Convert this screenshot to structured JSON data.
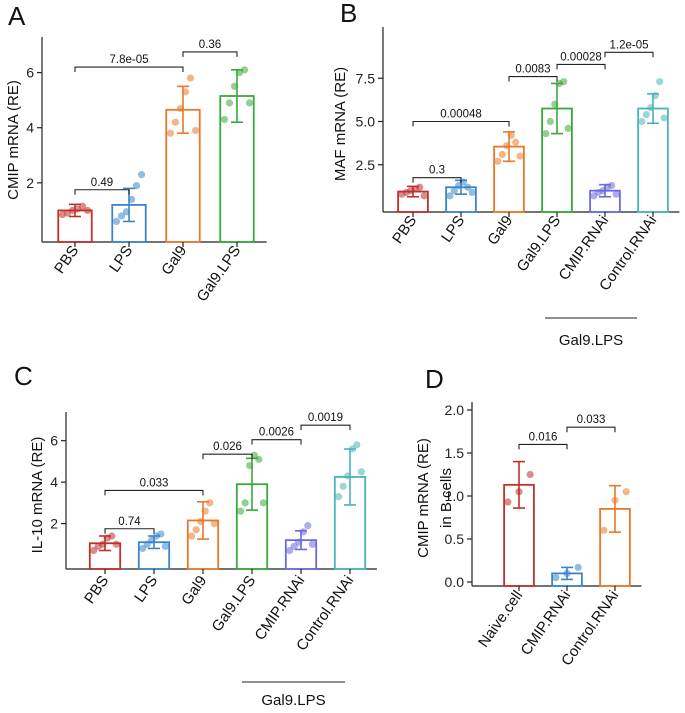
{
  "chart_data": [
    {
      "panel": "A",
      "type": "bar",
      "ylabel": "CMIP mRNA (RE)",
      "ylim": [
        0,
        7
      ],
      "yticks": [
        2,
        4,
        6
      ],
      "categories": [
        "PBS",
        "LPS",
        "Gal9",
        "Gal9.LPS"
      ],
      "colors": [
        "#c0302c",
        "#3a85c8",
        "#e9782b",
        "#3aa83a"
      ],
      "values": [
        1.0,
        1.2,
        4.65,
        5.15
      ],
      "errors": [
        0.22,
        0.6,
        0.85,
        0.95
      ],
      "points": [
        [
          0.85,
          0.9,
          1.0,
          1.05,
          1.15,
          1.0
        ],
        [
          0.6,
          0.8,
          0.95,
          1.4,
          1.9,
          2.3
        ],
        [
          3.8,
          4.2,
          4.7,
          5.3,
          5.8,
          3.9
        ],
        [
          4.3,
          4.9,
          5.5,
          6.0,
          6.1,
          4.9
        ]
      ],
      "comparisons": [
        {
          "a": 0,
          "b": 1,
          "label": "0.49",
          "y": 1.75
        },
        {
          "a": 0,
          "b": 2,
          "label": "7.8e-05",
          "y": 6.2
        },
        {
          "a": 2,
          "b": 3,
          "label": "0.36",
          "y": 6.75
        }
      ],
      "group_label": ""
    },
    {
      "panel": "B",
      "type": "bar",
      "ylabel": "MAF mRNA (RE)",
      "ylim": [
        0,
        10
      ],
      "yticks": [
        2.5,
        5.0,
        7.5
      ],
      "ytick_labels": [
        "2.5",
        "5.0",
        "7.5"
      ],
      "categories": [
        "PBS",
        "LPS",
        "Gal9",
        "Gal9.LPS",
        "CMIP.RNAi",
        "Control.RNAi"
      ],
      "colors": [
        "#c0302c",
        "#3a85c8",
        "#e9782b",
        "#3aa83a",
        "#6a6ae0",
        "#4bb3bb"
      ],
      "values": [
        0.95,
        1.2,
        3.55,
        5.75,
        1.0,
        5.75
      ],
      "errors": [
        0.3,
        0.4,
        0.85,
        1.45,
        0.35,
        0.85
      ],
      "points": [
        [
          0.8,
          0.9,
          1.0,
          1.1,
          1.2,
          0.7
        ],
        [
          0.7,
          1.0,
          1.3,
          1.5,
          1.2,
          0.9
        ],
        [
          2.7,
          3.1,
          3.6,
          4.2,
          3.8,
          3.0
        ],
        [
          4.3,
          5.0,
          6.0,
          7.2,
          7.3,
          4.6
        ],
        [
          0.7,
          0.9,
          1.0,
          1.2,
          1.3,
          0.8
        ],
        [
          5.0,
          5.4,
          5.8,
          6.5,
          7.3,
          5.2
        ]
      ],
      "comparisons": [
        {
          "a": 0,
          "b": 1,
          "label": "0.3",
          "y": 1.75
        },
        {
          "a": 0,
          "b": 2,
          "label": "0.00048",
          "y": 5.0
        },
        {
          "a": 2,
          "b": 3,
          "label": "0.0083",
          "y": 7.6
        },
        {
          "a": 3,
          "b": 4,
          "label": "0.00028",
          "y": 8.3
        },
        {
          "a": 4,
          "b": 5,
          "label": "1.2e-05",
          "y": 9.0
        }
      ],
      "group_label": "Gal9.LPS"
    },
    {
      "panel": "C",
      "type": "bar",
      "ylabel": "IL-10 mRNA (RE)",
      "ylim": [
        0,
        7
      ],
      "yticks": [
        2,
        4,
        6
      ],
      "categories": [
        "PBS",
        "LPS",
        "Gal9",
        "Gal9.LPS",
        "CMIP.RNAi",
        "Control.RNAi"
      ],
      "colors": [
        "#c0302c",
        "#3a85c8",
        "#e9782b",
        "#3aa83a",
        "#6a6ae0",
        "#4bb3bb"
      ],
      "values": [
        1.05,
        1.1,
        2.15,
        3.9,
        1.2,
        4.25
      ],
      "errors": [
        0.35,
        0.3,
        0.9,
        1.25,
        0.45,
        1.35
      ],
      "points": [
        [
          0.7,
          0.9,
          1.0,
          1.3,
          1.4,
          1.0
        ],
        [
          0.8,
          1.0,
          1.2,
          1.4,
          1.5,
          0.9
        ],
        [
          1.4,
          1.7,
          2.1,
          2.6,
          3.0,
          2.0
        ],
        [
          2.6,
          3.0,
          4.8,
          5.3,
          5.1,
          3.0
        ],
        [
          0.7,
          0.9,
          1.1,
          1.6,
          1.9,
          1.0
        ],
        [
          3.3,
          3.8,
          4.3,
          5.6,
          5.8,
          4.5
        ]
      ],
      "comparisons": [
        {
          "a": 0,
          "b": 1,
          "label": "0.74",
          "y": 1.75
        },
        {
          "a": 0,
          "b": 2,
          "label": "0.033",
          "y": 3.6
        },
        {
          "a": 2,
          "b": 3,
          "label": "0.026",
          "y": 5.35
        },
        {
          "a": 3,
          "b": 4,
          "label": "0.0026",
          "y": 6.05
        },
        {
          "a": 4,
          "b": 5,
          "label": "0.0019",
          "y": 6.75
        }
      ],
      "group_label": "Gal9.LPS"
    },
    {
      "panel": "D",
      "type": "bar",
      "ylabel": "CMIP mRNA (RE)",
      "ylabel2": "in B cells",
      "ylim": [
        0,
        2.0
      ],
      "yticks": [
        0.0,
        0.5,
        1.0,
        1.5,
        2.0
      ],
      "ytick_labels": [
        "0.0",
        "0.5",
        "1.0",
        "1.5",
        "2.0"
      ],
      "categories": [
        "Naive.cell",
        "CMIP.RNAi",
        "Control.RNAi"
      ],
      "colors": [
        "#c0302c",
        "#3a85c8",
        "#e9782b"
      ],
      "values": [
        1.13,
        0.1,
        0.85
      ],
      "errors": [
        0.27,
        0.07,
        0.27
      ],
      "points": [
        [
          0.93,
          1.05,
          1.25
        ],
        [
          0.05,
          0.1,
          0.17
        ],
        [
          0.6,
          0.95,
          1.05
        ]
      ],
      "comparisons": [
        {
          "a": 0,
          "b": 1,
          "label": "0.016",
          "y": 1.6
        },
        {
          "a": 1,
          "b": 2,
          "label": "0.033",
          "y": 1.8
        }
      ],
      "group_label": ""
    }
  ]
}
